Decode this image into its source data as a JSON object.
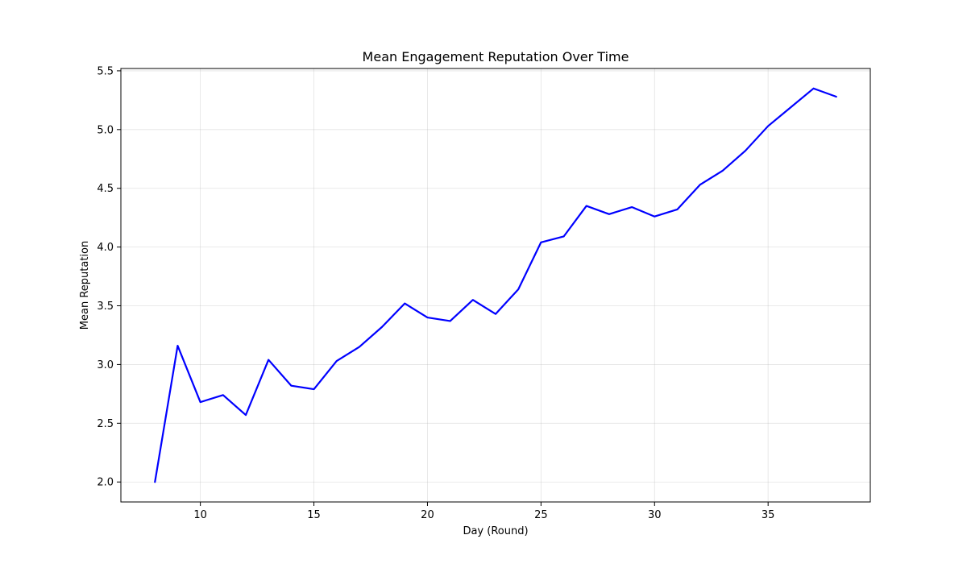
{
  "chart_data": {
    "type": "line",
    "title": "Mean Engagement Reputation Over Time",
    "xlabel": "Day (Round)",
    "ylabel": "Mean Reputation",
    "xlim": [
      6.5,
      39.5
    ],
    "ylim": [
      1.83,
      5.52
    ],
    "xticks": [
      10,
      15,
      20,
      25,
      30,
      35
    ],
    "yticks": [
      2.0,
      2.5,
      3.0,
      3.5,
      4.0,
      4.5,
      5.0,
      5.5
    ],
    "xtick_labels": [
      "10",
      "15",
      "20",
      "25",
      "30",
      "35"
    ],
    "ytick_labels": [
      "2.0",
      "2.5",
      "3.0",
      "3.5",
      "4.0",
      "4.5",
      "5.0",
      "5.5"
    ],
    "grid": true,
    "legend": "none",
    "line_color": "#0000ff",
    "series": [
      {
        "x": [
          8,
          9,
          10,
          11,
          12,
          13,
          14,
          15,
          16,
          17,
          18,
          19,
          20,
          21,
          22,
          23,
          24,
          25,
          26,
          27,
          28,
          29,
          30,
          31,
          32,
          33,
          34,
          35,
          36,
          37,
          38
        ],
        "values": [
          2.0,
          3.16,
          2.68,
          2.74,
          2.57,
          3.04,
          2.82,
          2.79,
          3.03,
          3.15,
          3.32,
          3.52,
          3.4,
          3.37,
          3.55,
          3.43,
          3.64,
          4.04,
          4.09,
          4.35,
          4.28,
          4.34,
          4.26,
          4.32,
          4.53,
          4.65,
          4.82,
          5.03,
          5.19,
          5.35,
          5.28
        ]
      }
    ]
  }
}
